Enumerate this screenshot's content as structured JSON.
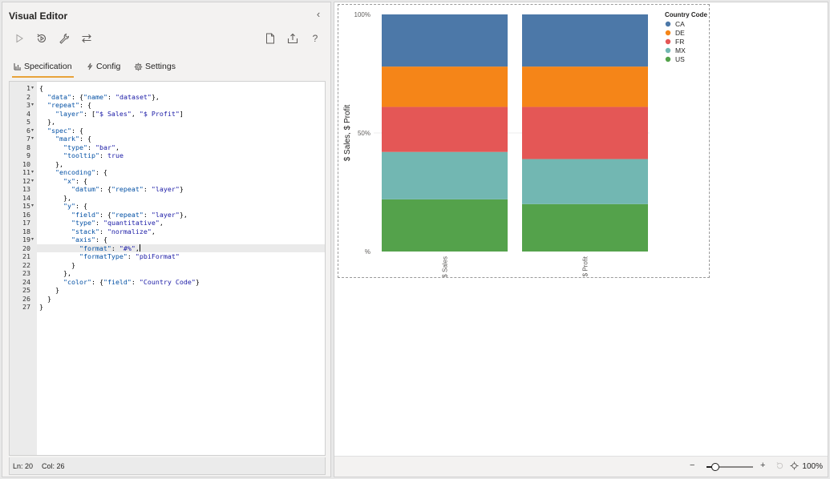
{
  "panel": {
    "title": "Visual Editor",
    "collapse_glyph": "‹"
  },
  "toolbar": {
    "icons": [
      "run-icon",
      "auto-apply-icon",
      "repair-icon",
      "swap-icon",
      "new-spec-icon",
      "export-icon",
      "help-icon"
    ]
  },
  "tabs": [
    {
      "label": "Specification",
      "icon": "chart-icon",
      "active": true
    },
    {
      "label": "Config",
      "icon": "config-icon",
      "active": false
    },
    {
      "label": "Settings",
      "icon": "gear-icon",
      "active": false
    }
  ],
  "editor": {
    "active_line": 20,
    "cursor_after_line": 20,
    "lines": [
      {
        "n": "1",
        "fold": true,
        "text": "{"
      },
      {
        "n": "2",
        "fold": false,
        "text": "  \"data\": {\"name\": \"dataset\"},"
      },
      {
        "n": "3",
        "fold": true,
        "text": "  \"repeat\": {"
      },
      {
        "n": "4",
        "fold": false,
        "text": "    \"layer\": [\"$ Sales\", \"$ Profit\"]"
      },
      {
        "n": "5",
        "fold": false,
        "text": "  },"
      },
      {
        "n": "6",
        "fold": true,
        "text": "  \"spec\": {"
      },
      {
        "n": "7",
        "fold": true,
        "text": "    \"mark\": {"
      },
      {
        "n": "8",
        "fold": false,
        "text": "      \"type\": \"bar\","
      },
      {
        "n": "9",
        "fold": false,
        "text": "      \"tooltip\": true"
      },
      {
        "n": "10",
        "fold": false,
        "text": "    },"
      },
      {
        "n": "11",
        "fold": true,
        "text": "    \"encoding\": {"
      },
      {
        "n": "12",
        "fold": true,
        "text": "      \"x\": {"
      },
      {
        "n": "13",
        "fold": false,
        "text": "        \"datum\": {\"repeat\": \"layer\"}"
      },
      {
        "n": "14",
        "fold": false,
        "text": "      },"
      },
      {
        "n": "15",
        "fold": true,
        "text": "      \"y\": {"
      },
      {
        "n": "16",
        "fold": false,
        "text": "        \"field\": {\"repeat\": \"layer\"},"
      },
      {
        "n": "17",
        "fold": false,
        "text": "        \"type\": \"quantitative\","
      },
      {
        "n": "18",
        "fold": false,
        "text": "        \"stack\": \"normalize\","
      },
      {
        "n": "19",
        "fold": true,
        "text": "        \"axis\": {"
      },
      {
        "n": "20",
        "fold": false,
        "text": "          \"format\": \"#%\","
      },
      {
        "n": "21",
        "fold": false,
        "text": "          \"formatType\": \"pbiFormat\""
      },
      {
        "n": "22",
        "fold": false,
        "text": "        }"
      },
      {
        "n": "23",
        "fold": false,
        "text": "      },"
      },
      {
        "n": "24",
        "fold": false,
        "text": "      \"color\": {\"field\": \"Country Code\"}"
      },
      {
        "n": "25",
        "fold": false,
        "text": "    }"
      },
      {
        "n": "26",
        "fold": false,
        "text": "  }"
      },
      {
        "n": "27",
        "fold": false,
        "text": "}"
      }
    ]
  },
  "status": {
    "line_label": "Ln: 20",
    "col_label": "Col: 26"
  },
  "chart_data": {
    "type": "bar",
    "stacked": "normalize",
    "categories": [
      "$ Sales",
      "$ Profit"
    ],
    "ylabel": "$ Sales, $ Profit",
    "yticks": [
      "100%",
      "50%",
      "%"
    ],
    "ylim": [
      0,
      1
    ],
    "legend_title": "Country Code",
    "legend_position": "top-right",
    "series": [
      {
        "name": "US",
        "color": "#54a24b",
        "values": [
          0.22,
          0.2
        ]
      },
      {
        "name": "MX",
        "color": "#72b7b2",
        "values": [
          0.2,
          0.19
        ]
      },
      {
        "name": "FR",
        "color": "#e45756",
        "values": [
          0.19,
          0.22
        ]
      },
      {
        "name": "DE",
        "color": "#f58518",
        "values": [
          0.17,
          0.17
        ]
      },
      {
        "name": "CA",
        "color": "#4c78a8",
        "values": [
          0.22,
          0.22
        ]
      }
    ],
    "legend_order": [
      "CA",
      "DE",
      "FR",
      "MX",
      "US"
    ]
  },
  "zoom": {
    "minus": "−",
    "plus": "+",
    "level": 0.19,
    "label": "100%"
  }
}
